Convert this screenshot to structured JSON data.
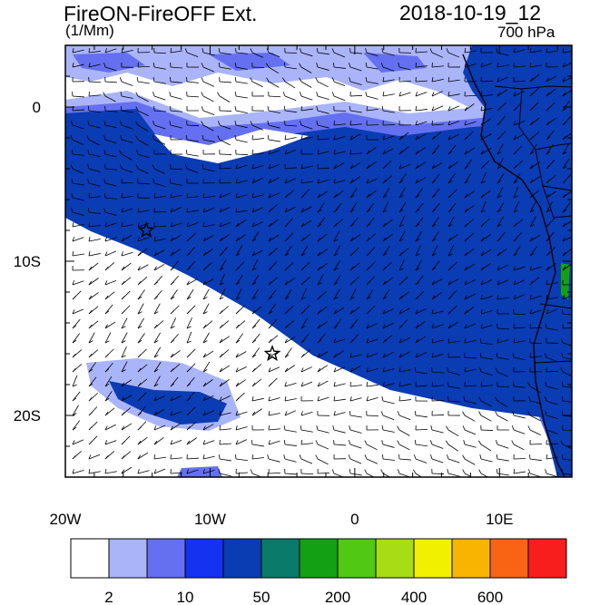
{
  "header": {
    "title": "FireON-FireOFF Ext.",
    "units": "(1/Mm)",
    "datetime": "2018-10-19_12",
    "level": "700 hPa"
  },
  "map": {
    "lon_range": [
      -20,
      15
    ],
    "lat_range": [
      -24,
      4
    ],
    "x_ticks": [
      "20W",
      "10W",
      "0",
      "10E"
    ],
    "y_ticks": [
      "0",
      "10S",
      "20S"
    ],
    "markers": [
      {
        "name": "star-marker-1",
        "lon": -14.4,
        "lat": -8.0
      },
      {
        "name": "star-marker-2",
        "lon": -5.7,
        "lat": -16.0
      }
    ]
  },
  "colorbar": {
    "colors": [
      "#ffffff",
      "#aab4f8",
      "#6470f0",
      "#1432f0",
      "#0a3cb4",
      "#0a7a6a",
      "#14a014",
      "#50c814",
      "#a8dc14",
      "#f0f000",
      "#f8b400",
      "#f86414",
      "#f81e1e"
    ],
    "tick_labels": [
      "2",
      "10",
      "50",
      "200",
      "400",
      "600"
    ]
  }
}
